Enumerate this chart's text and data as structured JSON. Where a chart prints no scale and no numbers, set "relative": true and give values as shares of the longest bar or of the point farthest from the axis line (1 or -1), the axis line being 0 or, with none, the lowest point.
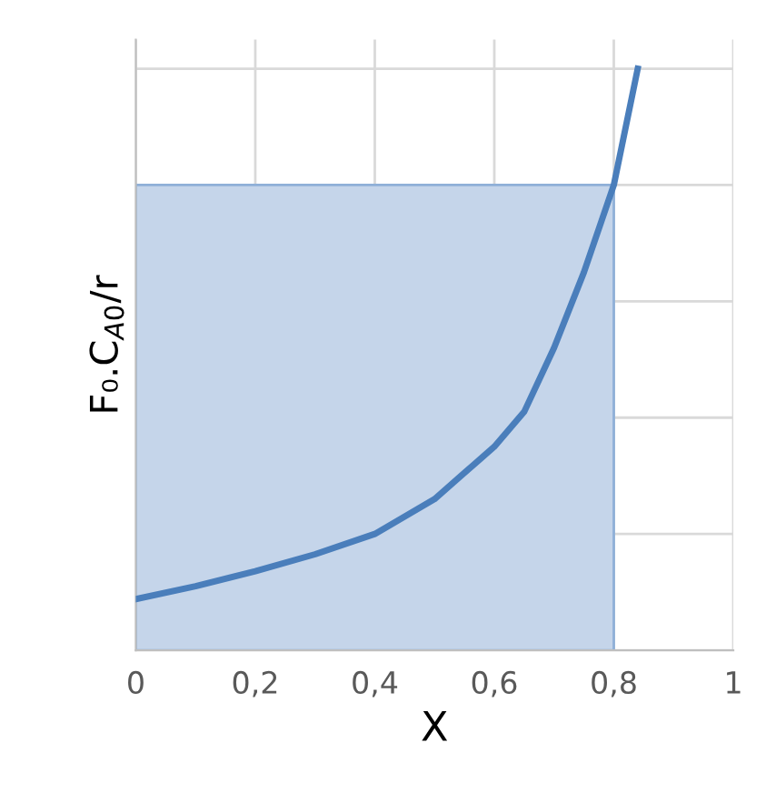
{
  "chart_data": {
    "type": "line",
    "xlabel": "X",
    "ylabel": "F₀.C$_{A0}$/r",
    "relative": true,
    "grid": true,
    "tick_labels": "x",
    "xlim": [
      0,
      1
    ],
    "xticks": [
      0,
      {
        "value": 0.2,
        "label": "0,2"
      },
      {
        "value": 0.4,
        "label": "0,4"
      },
      {
        "value": 0.6,
        "label": "0,6"
      },
      {
        "value": 0.8,
        "label": "0,8"
      },
      1
    ],
    "series": [
      {
        "type": "area",
        "color": "#c5d5ea",
        "x": [
          0,
          0.8
        ],
        "values": [
          0.8,
          0.8
        ]
      },
      {
        "color": "#4a7ebb",
        "x": [
          0,
          0.1,
          0.2,
          0.3,
          0.4,
          0.5,
          0.6,
          0.65,
          0.7,
          0.75,
          0.8,
          0.84
        ],
        "values": [
          0.088,
          0.11,
          0.136,
          0.165,
          0.2,
          0.26,
          0.35,
          0.41,
          0.52,
          0.65,
          0.8,
          1
        ]
      }
    ]
  }
}
